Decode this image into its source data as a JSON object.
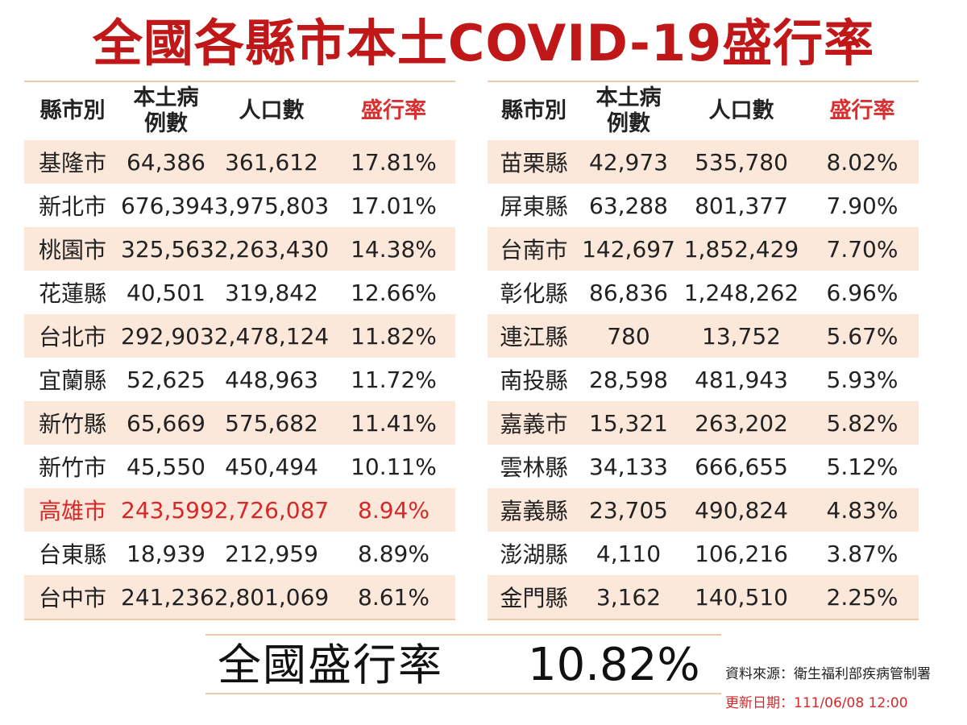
{
  "title": "全國各縣市本土COVID-19盛行率",
  "headers": {
    "city": "縣市別",
    "cases_line1": "本土病",
    "cases_line2": "例數",
    "population": "人口數",
    "rate": "盛行率"
  },
  "left_rows": [
    {
      "city": "基隆市",
      "cases": "64,386",
      "population": "361,612",
      "rate": "17.81%"
    },
    {
      "city": "新北市",
      "cases": "676,394",
      "population": "3,975,803",
      "rate": "17.01%"
    },
    {
      "city": "桃園市",
      "cases": "325,563",
      "population": "2,263,430",
      "rate": "14.38%"
    },
    {
      "city": "花蓮縣",
      "cases": "40,501",
      "population": "319,842",
      "rate": "12.66%"
    },
    {
      "city": "台北市",
      "cases": "292,903",
      "population": "2,478,124",
      "rate": "11.82%"
    },
    {
      "city": "宜蘭縣",
      "cases": "52,625",
      "population": "448,963",
      "rate": "11.72%"
    },
    {
      "city": "新竹縣",
      "cases": "65,669",
      "population": "575,682",
      "rate": "11.41%"
    },
    {
      "city": "新竹市",
      "cases": "45,550",
      "population": "450,494",
      "rate": "10.11%"
    },
    {
      "city": "高雄市",
      "cases": "243,599",
      "population": "2,726,087",
      "rate": "8.94%"
    },
    {
      "city": "台東縣",
      "cases": "18,939",
      "population": "212,959",
      "rate": "8.89%"
    },
    {
      "city": "台中市",
      "cases": "241,236",
      "population": "2,801,069",
      "rate": "8.61%"
    }
  ],
  "right_rows": [
    {
      "city": "苗栗縣",
      "cases": "42,973",
      "population": "535,780",
      "rate": "8.02%"
    },
    {
      "city": "屏東縣",
      "cases": "63,288",
      "population": "801,377",
      "rate": "7.90%"
    },
    {
      "city": "台南市",
      "cases": "142,697",
      "population": "1,852,429",
      "rate": "7.70%"
    },
    {
      "city": "彰化縣",
      "cases": "86,836",
      "population": "1,248,262",
      "rate": "6.96%"
    },
    {
      "city": "連江縣",
      "cases": "780",
      "population": "13,752",
      "rate": "5.67%"
    },
    {
      "city": "南投縣",
      "cases": "28,598",
      "population": "481,943",
      "rate": "5.93%"
    },
    {
      "city": "嘉義市",
      "cases": "15,321",
      "population": "263,202",
      "rate": "5.82%"
    },
    {
      "city": "雲林縣",
      "cases": "34,133",
      "population": "666,655",
      "rate": "5.12%"
    },
    {
      "city": "嘉義縣",
      "cases": "23,705",
      "population": "490,824",
      "rate": "4.83%"
    },
    {
      "city": "澎湖縣",
      "cases": "4,110",
      "population": "106,216",
      "rate": "3.87%"
    },
    {
      "city": "金門縣",
      "cases": "3,162",
      "population": "140,510",
      "rate": "2.25%"
    }
  ],
  "highlight_city": "高雄市",
  "national": {
    "label": "全國盛行率",
    "value": "10.82%"
  },
  "source": "資料來源：衛生福利部疾病管制署",
  "updated": "更新日期：111/06/08  12:00",
  "colors": {
    "title": "#c01818",
    "rate_header": "#d83030",
    "highlight": "#d62828",
    "row_shade": "#fbe8db",
    "rule": "#f0c9a8"
  }
}
